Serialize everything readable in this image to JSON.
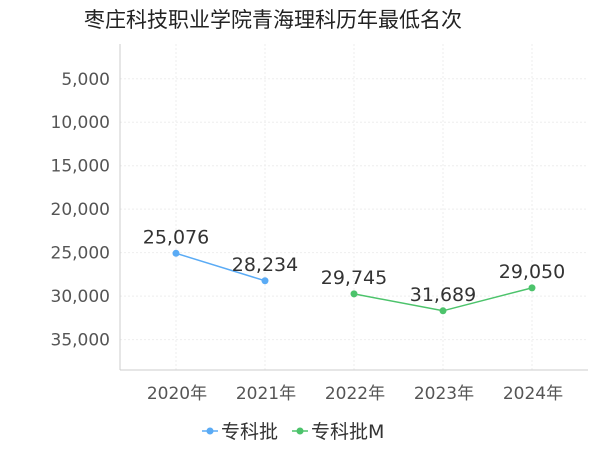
{
  "chart_data": {
    "type": "line",
    "title": "枣庄科技职业学院青海理科历年最低名次",
    "categories": [
      "2020年",
      "2021年",
      "2022年",
      "2023年",
      "2024年"
    ],
    "y_axis": {
      "ticks": [
        5000,
        10000,
        15000,
        20000,
        25000,
        30000,
        35000
      ],
      "tick_labels": [
        "5,000",
        "10,000",
        "15,000",
        "20,000",
        "25,000",
        "30,000",
        "35,000"
      ],
      "range": [
        1000,
        38500
      ],
      "inverted": true
    },
    "grid": true,
    "legend_position": "bottom",
    "series": [
      {
        "name": "专科批",
        "color": "#5aabf5",
        "values": [
          25076,
          28234,
          null,
          null,
          null
        ],
        "labels": [
          "25,076",
          "28,234",
          "",
          "",
          ""
        ]
      },
      {
        "name": "专科批M",
        "color": "#4cc36b",
        "values": [
          null,
          null,
          29745,
          31689,
          29050
        ],
        "labels": [
          "",
          "",
          "29,745",
          "31,689",
          "29,050"
        ]
      }
    ]
  }
}
